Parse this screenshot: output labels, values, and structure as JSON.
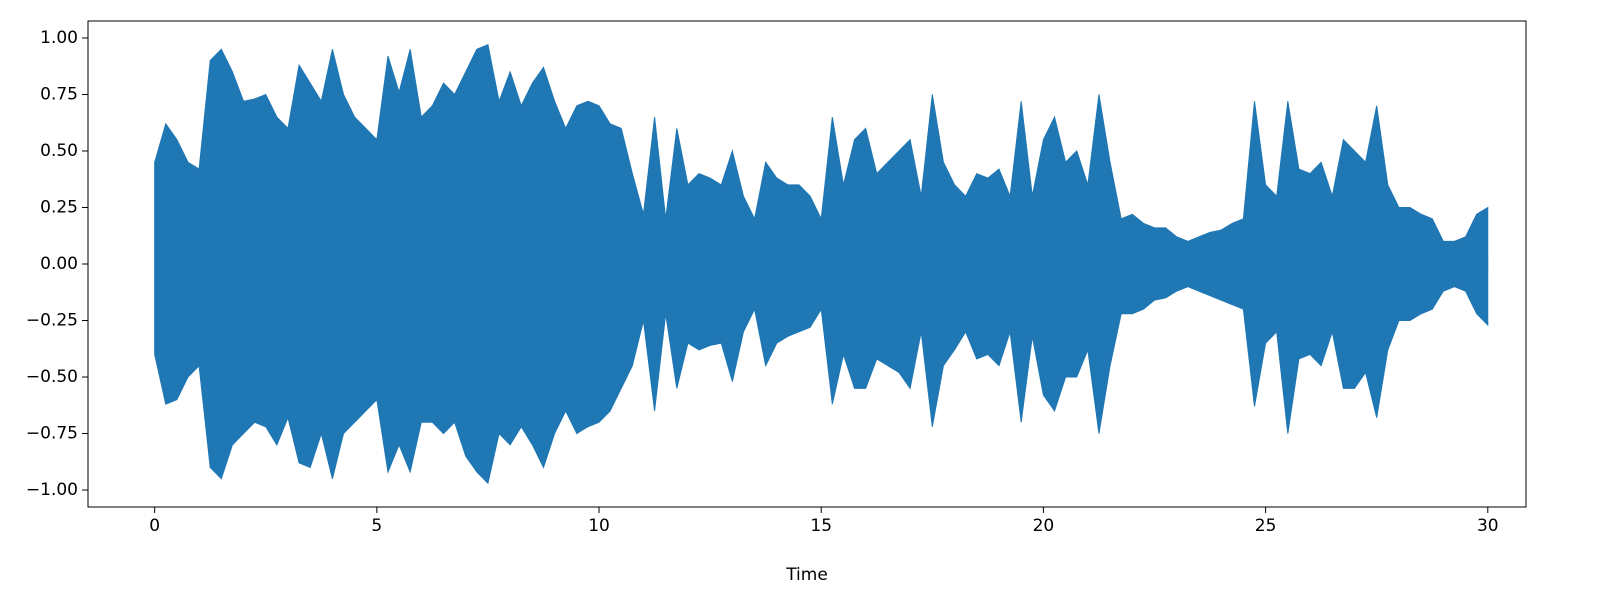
{
  "chart_data": {
    "type": "waveform",
    "x_label": "Time",
    "x": [
      0,
      0.25,
      0.5,
      0.75,
      1,
      1.25,
      1.5,
      1.75,
      2,
      2.25,
      2.5,
      2.75,
      3,
      3.25,
      3.5,
      3.75,
      4,
      4.25,
      4.5,
      4.75,
      5,
      5.25,
      5.5,
      5.75,
      6,
      6.25,
      6.5,
      6.75,
      7,
      7.25,
      7.5,
      7.75,
      8,
      8.25,
      8.5,
      8.75,
      9,
      9.25,
      9.5,
      9.75,
      10,
      10.25,
      10.5,
      10.75,
      11,
      11.25,
      11.5,
      11.75,
      12,
      12.25,
      12.5,
      12.75,
      13,
      13.25,
      13.5,
      13.75,
      14,
      14.25,
      14.5,
      14.75,
      15,
      15.25,
      15.5,
      15.75,
      16,
      16.25,
      16.5,
      16.75,
      17,
      17.25,
      17.5,
      17.75,
      18,
      18.25,
      18.5,
      18.75,
      19,
      19.25,
      19.5,
      19.75,
      20,
      20.25,
      20.5,
      20.75,
      21,
      21.25,
      21.5,
      21.75,
      22,
      22.25,
      22.5,
      22.75,
      23,
      23.25,
      23.5,
      23.75,
      24,
      24.25,
      24.5,
      24.75,
      25,
      25.25,
      25.5,
      25.75,
      26,
      26.25,
      26.5,
      26.75,
      27,
      27.25,
      27.5,
      27.75,
      28,
      28.25,
      28.5,
      28.75,
      29,
      29.25,
      29.5,
      29.75,
      30
    ],
    "series": [
      {
        "color": "#1f77b4",
        "values": [
          0.45,
          0.62,
          0.55,
          0.45,
          0.42,
          0.9,
          0.95,
          0.85,
          0.72,
          0.73,
          0.75,
          0.65,
          0.6,
          0.88,
          0.8,
          0.72,
          0.95,
          0.75,
          0.65,
          0.6,
          0.55,
          0.92,
          0.76,
          0.95,
          0.65,
          0.7,
          0.8,
          0.75,
          0.85,
          0.95,
          0.97,
          0.72,
          0.85,
          0.7,
          0.8,
          0.87,
          0.72,
          0.6,
          0.7,
          0.72,
          0.7,
          0.62,
          0.6,
          0.4,
          0.22,
          0.65,
          0.2,
          0.6,
          0.35,
          0.4,
          0.38,
          0.35,
          0.5,
          0.3,
          0.2,
          0.45,
          0.38,
          0.35,
          0.35,
          0.3,
          0.2,
          0.65,
          0.35,
          0.55,
          0.6,
          0.4,
          0.45,
          0.5,
          0.55,
          0.3,
          0.75,
          0.45,
          0.35,
          0.3,
          0.4,
          0.38,
          0.42,
          0.3,
          0.72,
          0.3,
          0.55,
          0.65,
          0.45,
          0.5,
          0.35,
          0.75,
          0.45,
          0.2,
          0.22,
          0.18,
          0.16,
          0.16,
          0.12,
          0.1,
          0.12,
          0.14,
          0.15,
          0.18,
          0.2,
          0.72,
          0.35,
          0.3,
          0.72,
          0.42,
          0.4,
          0.45,
          0.3,
          0.55,
          0.5,
          0.45,
          0.7,
          0.35,
          0.25,
          0.25,
          0.22,
          0.2,
          0.1,
          0.1,
          0.12,
          0.22,
          0.25
        ]
      },
      {
        "color": "#1f77b4",
        "values": [
          -0.4,
          -0.62,
          -0.6,
          -0.5,
          -0.45,
          -0.9,
          -0.95,
          -0.8,
          -0.75,
          -0.7,
          -0.72,
          -0.8,
          -0.68,
          -0.88,
          -0.9,
          -0.75,
          -0.95,
          -0.75,
          -0.7,
          -0.65,
          -0.6,
          -0.92,
          -0.8,
          -0.92,
          -0.7,
          -0.7,
          -0.75,
          -0.7,
          -0.85,
          -0.92,
          -0.97,
          -0.75,
          -0.8,
          -0.72,
          -0.8,
          -0.9,
          -0.75,
          -0.65,
          -0.75,
          -0.72,
          -0.7,
          -0.65,
          -0.55,
          -0.45,
          -0.25,
          -0.65,
          -0.22,
          -0.55,
          -0.35,
          -0.38,
          -0.36,
          -0.35,
          -0.52,
          -0.3,
          -0.2,
          -0.45,
          -0.35,
          -0.32,
          -0.3,
          -0.28,
          -0.2,
          -0.62,
          -0.4,
          -0.55,
          -0.55,
          -0.42,
          -0.45,
          -0.48,
          -0.55,
          -0.3,
          -0.72,
          -0.45,
          -0.38,
          -0.3,
          -0.42,
          -0.4,
          -0.45,
          -0.3,
          -0.7,
          -0.32,
          -0.58,
          -0.65,
          -0.5,
          -0.5,
          -0.38,
          -0.75,
          -0.45,
          -0.22,
          -0.22,
          -0.2,
          -0.16,
          -0.15,
          -0.12,
          -0.1,
          -0.12,
          -0.14,
          -0.16,
          -0.18,
          -0.2,
          -0.63,
          -0.35,
          -0.3,
          -0.75,
          -0.42,
          -0.4,
          -0.45,
          -0.3,
          -0.55,
          -0.55,
          -0.48,
          -0.68,
          -0.38,
          -0.25,
          -0.25,
          -0.22,
          -0.2,
          -0.12,
          -0.1,
          -0.12,
          -0.22,
          -0.27
        ]
      }
    ],
    "xlim": [
      -1.5,
      30.86
    ],
    "ylim": [
      -1.075,
      1.075
    ],
    "xticks": [
      0,
      5,
      10,
      15,
      20,
      25,
      30
    ],
    "yticks": [
      {
        "value": -1,
        "label": "−1.00"
      },
      {
        "value": -0.75,
        "label": "−0.75"
      },
      {
        "value": -0.5,
        "label": "−0.50"
      },
      {
        "value": -0.25,
        "label": "−0.25"
      },
      {
        "value": 0,
        "label": "0.00"
      },
      {
        "value": 0.25,
        "label": "0.25"
      },
      {
        "value": 0.5,
        "label": "0.50"
      },
      {
        "value": 0.75,
        "label": "0.75"
      },
      {
        "value": 1,
        "label": "1.00"
      }
    ]
  }
}
